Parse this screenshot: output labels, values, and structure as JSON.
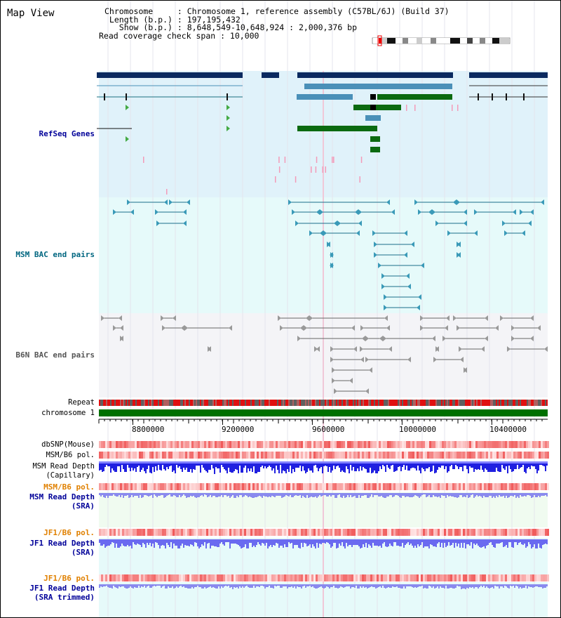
{
  "header": {
    "view_title": "Map View",
    "chromosome_line": "Chromosome     : Chromosome 1, reference assembly (C57BL/6J) (Build 37)",
    "length_line": " Length (b.p.) : 197,195,432",
    "show_line": "   Show (b.p.) : 8,648,549-10,648,924 : 2,000,376 bp",
    "coverage_line": "Read coverage check span : 10,000"
  },
  "tracks": {
    "refseq": {
      "label": "RefSeq Genes",
      "color": "#000099",
      "bg": "#e0f2fa"
    },
    "msm_bac": {
      "label": "MSM BAC end pairs",
      "color": "#006680",
      "bg": "#e6fafa"
    },
    "b6n_bac": {
      "label": "B6N BAC end pairs",
      "color": "#555555",
      "bg": "#f4f4f7"
    },
    "repeat": {
      "label": "Repeat"
    },
    "chromosome": {
      "label": "chromosome 1",
      "color": "#007000"
    },
    "dbsnp": {
      "label": "dbSNP(Mouse)"
    },
    "msm_b6_pol": {
      "label": "MSM/B6 pol."
    },
    "msm_depth_cap": {
      "line1": "MSM Read Depth",
      "line2": "(Capillary)"
    },
    "msm_b6_pol2": {
      "label": "MSM/B6 pol.",
      "color": "#e08000"
    },
    "msm_depth_sra": {
      "line1": "MSM Read Depth",
      "line2": "(SRA)",
      "color": "#000099"
    },
    "jf1_b6_pol": {
      "label": "JF1/B6 pol.",
      "color": "#e08000"
    },
    "jf1_depth_sra": {
      "line1": "JF1 Read Depth",
      "line2": "(SRA)",
      "color": "#000099"
    },
    "jf1_b6_pol2": {
      "label": "JF1/B6 pol.",
      "color": "#e08000"
    },
    "jf1_depth_trim": {
      "line1": "JF1 Read Depth",
      "line2": "(SRA trimmed)",
      "color": "#000099"
    }
  },
  "axis": {
    "ticks": [
      "8800000",
      "9200000",
      "9600000",
      "10000000",
      "10400000"
    ],
    "tick_values": [
      8800000,
      9200000,
      9600000,
      10000000,
      10400000
    ],
    "range": [
      8648549,
      10648924
    ]
  }
}
